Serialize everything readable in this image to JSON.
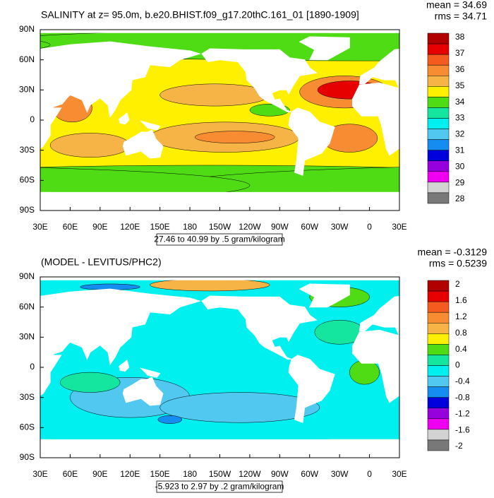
{
  "panels": [
    {
      "title": "SALINITY at z=  95.0m, b.e20.BHIST.f09_g17.20thC.161_01 [1890-1909]",
      "stats": [
        "mean = 34.69",
        "rms = 34.71"
      ],
      "range_label": "27.46 to 40.99 by .5 gram/kilogram",
      "colorbar": {
        "levels": [
          38,
          37,
          36,
          35,
          34,
          33,
          32,
          31,
          30,
          29,
          28
        ],
        "colors": [
          "#b00000",
          "#e60000",
          "#f55a1e",
          "#f78c32",
          "#f7b446",
          "#fff000",
          "#50dc14",
          "#14e6a0",
          "#00f0f0",
          "#50c8f0",
          "#148cf0",
          "#0000dc",
          "#9600dc",
          "#f000f0",
          "#d2d2d2",
          "#787878"
        ]
      }
    },
    {
      "title": "(MODEL - LEVITUS/PHC2)",
      "stats": [
        "mean = -0.3129",
        "rms = 0.5239"
      ],
      "range_label": "-5.923 to 2.97 by .2 gram/kilogram",
      "colorbar": {
        "levels": [
          2,
          1.6,
          1.2,
          0.8,
          0.4,
          0,
          -0.4,
          -0.8,
          -1.2,
          -1.6,
          -2
        ],
        "colors": [
          "#b00000",
          "#e60000",
          "#f55a1e",
          "#f78c32",
          "#f7b446",
          "#fff000",
          "#50dc14",
          "#14e6a0",
          "#00f0f0",
          "#50c8f0",
          "#148cf0",
          "#0000dc",
          "#9600dc",
          "#f000f0",
          "#d2d2d2",
          "#787878"
        ]
      }
    }
  ],
  "lat_labels": [
    "90N",
    "60N",
    "30N",
    "0",
    "30S",
    "60S",
    "90S"
  ],
  "lon_labels": [
    "30E",
    "60E",
    "90E",
    "120E",
    "150E",
    "180",
    "150W",
    "120W",
    "90W",
    "60W",
    "30W",
    "0",
    "30E"
  ]
}
